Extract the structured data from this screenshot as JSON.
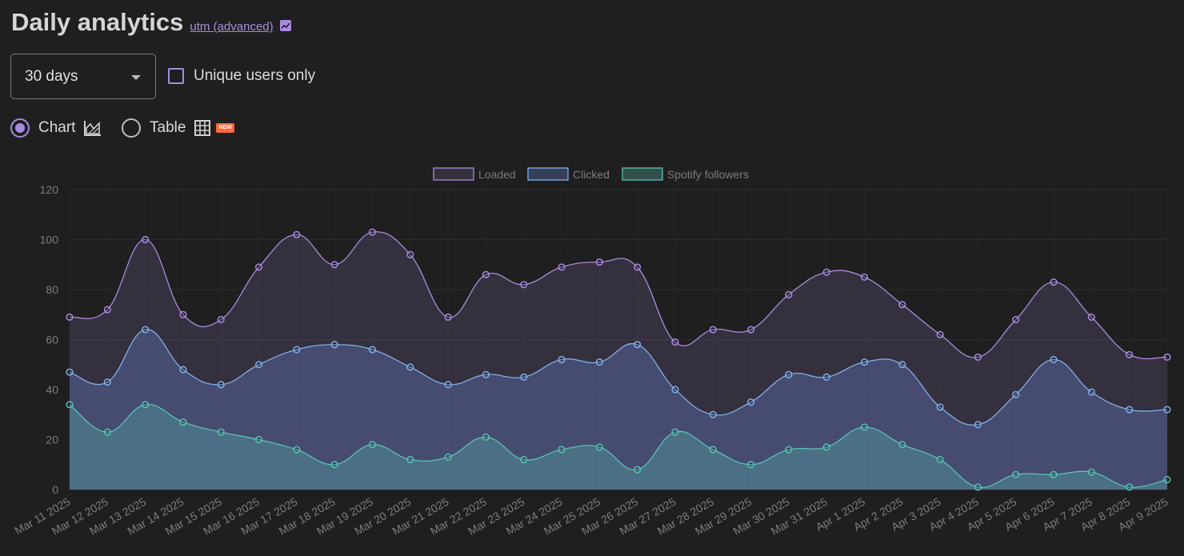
{
  "header": {
    "title": "Daily analytics",
    "utm_link": "utm (advanced)"
  },
  "controls": {
    "period_select": "30 days",
    "unique_label": "Unique users only",
    "chart_label": "Chart",
    "table_label": "Table",
    "new_badge": "NEW",
    "view_mode": "chart"
  },
  "colors": {
    "accent": "#a98be0",
    "loaded": "#a98be0",
    "clicked": "#7fb0e8",
    "spotify": "#59c2b5"
  },
  "chart_data": {
    "type": "area",
    "x": [
      "Mar 11 2025",
      "Mar 12 2025",
      "Mar 13 2025",
      "Mar 14 2025",
      "Mar 15 2025",
      "Mar 16 2025",
      "Mar 17 2025",
      "Mar 18 2025",
      "Mar 19 2025",
      "Mar 20 2025",
      "Mar 21 2025",
      "Mar 22 2025",
      "Mar 23 2025",
      "Mar 24 2025",
      "Mar 25 2025",
      "Mar 26 2025",
      "Mar 27 2025",
      "Mar 28 2025",
      "Mar 29 2025",
      "Mar 30 2025",
      "Mar 31 2025",
      "Apr 1 2025",
      "Apr 2 2025",
      "Apr 3 2025",
      "Apr 4 2025",
      "Apr 5 2025",
      "Apr 6 2025",
      "Apr 7 2025",
      "Apr 8 2025",
      "Apr 9 2025"
    ],
    "series": [
      {
        "name": "Loaded",
        "values": [
          69,
          72,
          100,
          70,
          68,
          89,
          102,
          90,
          103,
          94,
          69,
          86,
          82,
          89,
          91,
          89,
          59,
          64,
          64,
          78,
          87,
          85,
          74,
          62,
          53,
          68,
          83,
          69,
          54,
          53
        ]
      },
      {
        "name": "Clicked",
        "values": [
          47,
          43,
          64,
          48,
          42,
          50,
          56,
          58,
          56,
          49,
          42,
          46,
          45,
          52,
          51,
          58,
          40,
          30,
          35,
          46,
          45,
          51,
          50,
          33,
          26,
          38,
          52,
          39,
          32,
          32
        ]
      },
      {
        "name": "Spotify followers",
        "values": [
          34,
          23,
          34,
          27,
          23,
          20,
          16,
          10,
          18,
          12,
          13,
          21,
          12,
          16,
          17,
          8,
          23,
          16,
          10,
          16,
          17,
          25,
          18,
          12,
          1,
          6,
          6,
          7,
          1,
          4
        ]
      }
    ],
    "ylim": [
      0,
      120
    ],
    "yticks": [
      0,
      20,
      40,
      60,
      80,
      100,
      120
    ],
    "grid": true,
    "legend_position": "top-center"
  }
}
